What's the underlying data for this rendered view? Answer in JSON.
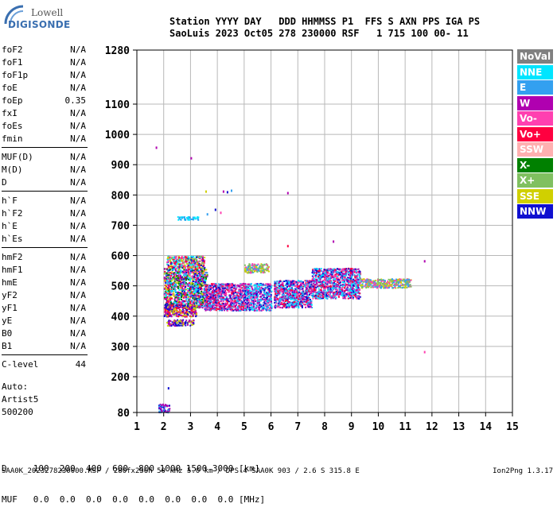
{
  "logo": {
    "lowell": "Lowell",
    "digisonde": "DIGISONDE"
  },
  "header": {
    "line1": "Station YYYY DAY   DDD HHMMSS P1  FFS S AXN PPS IGA PS",
    "line2": "SaoLuis 2023 Oct05 278 230000 RSF   1 715 100 00- 11"
  },
  "params": [
    {
      "label": "foF2",
      "value": "N/A"
    },
    {
      "label": "foF1",
      "value": "N/A"
    },
    {
      "label": "foF1p",
      "value": "N/A"
    },
    {
      "label": "foE",
      "value": "N/A"
    },
    {
      "label": "foEp",
      "value": "0.35"
    },
    {
      "label": "fxI",
      "value": "N/A"
    },
    {
      "label": "foEs",
      "value": "N/A"
    },
    {
      "label": "fmin",
      "value": "N/A"
    },
    {
      "label": "MUF(D)",
      "value": "N/A"
    },
    {
      "label": "M(D)",
      "value": "N/A"
    },
    {
      "label": "D",
      "value": "N/A"
    },
    {
      "label": "h`F",
      "value": "N/A"
    },
    {
      "label": "h`F2",
      "value": "N/A"
    },
    {
      "label": "h`E",
      "value": "N/A"
    },
    {
      "label": "h`Es",
      "value": "N/A"
    },
    {
      "label": "hmF2",
      "value": "N/A"
    },
    {
      "label": "hmF1",
      "value": "N/A"
    },
    {
      "label": "hmE",
      "value": "N/A"
    },
    {
      "label": "yF2",
      "value": "N/A"
    },
    {
      "label": "yF1",
      "value": "N/A"
    },
    {
      "label": "yE",
      "value": "N/A"
    },
    {
      "label": "B0",
      "value": "N/A"
    },
    {
      "label": "B1",
      "value": "N/A"
    },
    {
      "label": "C-level",
      "value": "44"
    }
  ],
  "auto": {
    "title": "Auto:",
    "artist": "Artist5",
    "code": "500200"
  },
  "legend": [
    {
      "label": "NoVal",
      "color": "#808080"
    },
    {
      "label": "NNE",
      "color": "#00e5ff"
    },
    {
      "label": "E",
      "color": "#33a0f0"
    },
    {
      "label": "W",
      "color": "#b000b0"
    },
    {
      "label": "Vo-",
      "color": "#ff40b0"
    },
    {
      "label": "Vo+",
      "color": "#ff0040"
    },
    {
      "label": "SSW",
      "color": "#ffb0b0"
    },
    {
      "label": "X-",
      "color": "#008000"
    },
    {
      "label": "X+",
      "color": "#80c060"
    },
    {
      "label": "SSE",
      "color": "#d0d000"
    },
    {
      "label": "NNW",
      "color": "#1010d0"
    }
  ],
  "bottom": {
    "d_line": "D     100  200  400  600  800 1000 1500 3000 [km]",
    "muf_line": "MUF   0.0  0.0  0.0  0.0  0.0  0.0  0.0  0.0 [MHz]"
  },
  "footer": {
    "text": "SAA0K_2023278230000.RSF / 280fx256h 50 kHz 5.0 km / DPS-4 SAA0K 903 / 2.6 S 315.8 E",
    "version": "Ion2Png 1.3.17"
  },
  "chart_data": {
    "type": "scatter",
    "xlim": [
      1,
      15
    ],
    "ylim": [
      80,
      1280
    ],
    "x_ticks": [
      "1",
      "2",
      "3",
      "4",
      "5",
      "6",
      "7",
      "8",
      "9",
      "10",
      "11",
      "12",
      "13",
      "14",
      "15"
    ],
    "y_ticks": [
      "80",
      "200",
      "300",
      "400",
      "500",
      "600",
      "700",
      "800",
      "900",
      "1000",
      "1100",
      "1280"
    ],
    "grid": true,
    "clusters": [
      {
        "x": [
          2.0,
          3.6
        ],
        "y": [
          430,
          560
        ],
        "colors": [
          "#1010d0",
          "#b000b0",
          "#ff0040",
          "#d0d000",
          "#33a0f0",
          "#ff40b0",
          "#008000",
          "#00e5ff"
        ]
      },
      {
        "x": [
          2.1,
          3.5
        ],
        "y": [
          560,
          600
        ],
        "colors": [
          "#d0d000",
          "#80c060",
          "#00e5ff",
          "#ff0040",
          "#1010d0",
          "#ff40b0"
        ]
      },
      {
        "x": [
          2.0,
          3.2
        ],
        "y": [
          400,
          440
        ],
        "colors": [
          "#b000b0",
          "#ff0040",
          "#1010d0",
          "#d0d000"
        ]
      },
      {
        "x": [
          2.1,
          3.1
        ],
        "y": [
          370,
          390
        ],
        "colors": [
          "#b000b0",
          "#d0d000",
          "#1010d0"
        ]
      },
      {
        "x": [
          3.5,
          5.0
        ],
        "y": [
          420,
          510
        ],
        "colors": [
          "#1010d0",
          "#b000b0",
          "#ff40b0",
          "#33a0f0",
          "#ff0040"
        ]
      },
      {
        "x": [
          5.0,
          6.0
        ],
        "y": [
          420,
          510
        ],
        "colors": [
          "#1010d0",
          "#b000b0",
          "#33a0f0",
          "#ff40b0",
          "#00e5ff"
        ]
      },
      {
        "x": [
          5.0,
          5.9
        ],
        "y": [
          545,
          575
        ],
        "colors": [
          "#d0d000",
          "#80c060",
          "#ff40b0",
          "#33a0f0"
        ]
      },
      {
        "x": [
          6.1,
          7.5
        ],
        "y": [
          430,
          520
        ],
        "colors": [
          "#1010d0",
          "#b000b0",
          "#ff40b0",
          "#ff0040",
          "#33a0f0",
          "#00e5ff"
        ]
      },
      {
        "x": [
          7.5,
          9.3
        ],
        "y": [
          460,
          560
        ],
        "colors": [
          "#33a0f0",
          "#ff40b0",
          "#b000b0",
          "#00e5ff",
          "#ff0040",
          "#1010d0"
        ]
      },
      {
        "x": [
          9.3,
          11.2
        ],
        "y": [
          495,
          525
        ],
        "colors": [
          "#80c060",
          "#d0d000",
          "#ff40b0",
          "#33a0f0"
        ]
      },
      {
        "x": [
          1.8,
          2.2
        ],
        "y": [
          82,
          110
        ],
        "colors": [
          "#1010d0",
          "#33a0f0",
          "#b000b0"
        ]
      },
      {
        "x": [
          2.5,
          3.3
        ],
        "y": [
          720,
          730
        ],
        "colors": [
          "#33a0f0",
          "#00e5ff"
        ]
      }
    ],
    "points": [
      {
        "x": 1.7,
        "y": 960,
        "color": "#b000b0"
      },
      {
        "x": 3.0,
        "y": 925,
        "color": "#b000b0"
      },
      {
        "x": 3.55,
        "y": 815,
        "color": "#d0d000"
      },
      {
        "x": 4.2,
        "y": 815,
        "color": "#b000b0"
      },
      {
        "x": 4.35,
        "y": 813,
        "color": "#1010d0"
      },
      {
        "x": 4.5,
        "y": 818,
        "color": "#33a0f0"
      },
      {
        "x": 6.6,
        "y": 810,
        "color": "#b000b0"
      },
      {
        "x": 3.9,
        "y": 755,
        "color": "#1010d0"
      },
      {
        "x": 4.1,
        "y": 745,
        "color": "#ff40b0"
      },
      {
        "x": 3.6,
        "y": 740,
        "color": "#33a0f0"
      },
      {
        "x": 6.6,
        "y": 635,
        "color": "#ff0040"
      },
      {
        "x": 8.3,
        "y": 650,
        "color": "#b000b0"
      },
      {
        "x": 11.7,
        "y": 585,
        "color": "#b000b0"
      },
      {
        "x": 11.7,
        "y": 285,
        "color": "#ff40b0"
      },
      {
        "x": 2.15,
        "y": 165,
        "color": "#1010d0"
      },
      {
        "x": 2.0,
        "y": 530,
        "color": "#b000b0"
      }
    ]
  }
}
